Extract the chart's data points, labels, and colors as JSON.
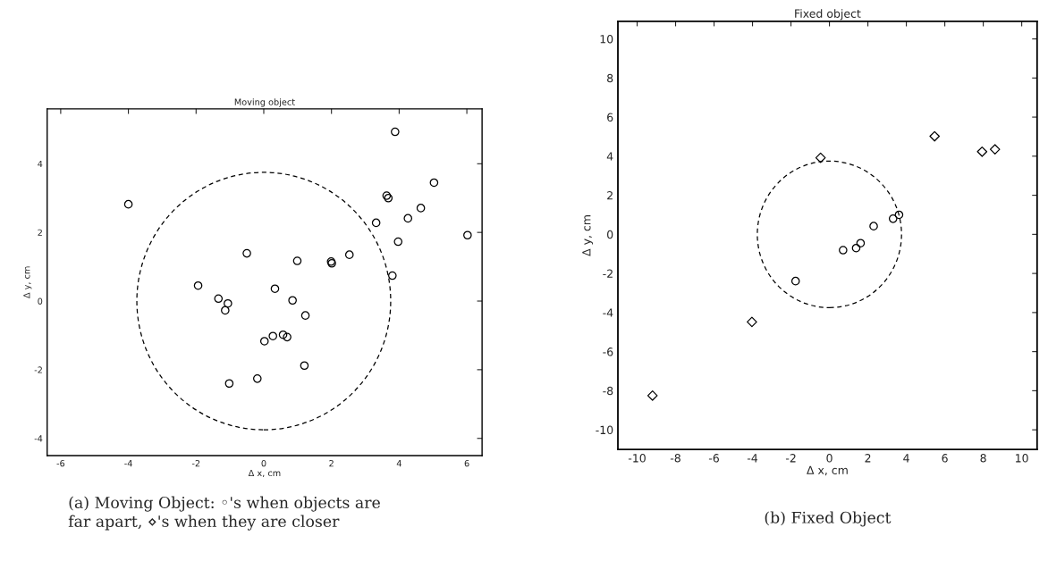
{
  "chart_data": [
    {
      "type": "scatter",
      "title": "Moving object",
      "xlabel": "Δ x, cm",
      "ylabel": "Δ y, cm",
      "xlim": [
        -6.4,
        6.45
      ],
      "ylim": [
        -4.5,
        5.6
      ],
      "xticks": [
        -6,
        -4,
        -2,
        0,
        2,
        4,
        6
      ],
      "yticks": [
        -4,
        -2,
        0,
        2,
        4
      ],
      "grid": false,
      "series": [
        {
          "marker": "circle",
          "color": "#000000",
          "x": [
            -4.0,
            -0.5,
            -1.94,
            -1.34,
            -1.06,
            -1.14,
            0.02,
            0.27,
            -1.02,
            -0.19,
            3.88,
            5.03,
            3.63,
            3.68,
            4.64,
            4.26,
            3.32,
            6.02,
            3.97,
            2.53,
            0.99,
            1.99,
            2.01,
            3.8,
            0.33,
            0.85,
            1.23,
            0.57,
            0.69,
            1.2
          ],
          "values": [
            2.82,
            1.39,
            0.45,
            0.07,
            -0.07,
            -0.27,
            -1.17,
            -1.02,
            -2.4,
            -2.26,
            4.93,
            3.45,
            3.07,
            3.0,
            2.71,
            2.41,
            2.28,
            1.92,
            1.73,
            1.35,
            1.17,
            1.15,
            1.1,
            0.74,
            0.36,
            0.02,
            -0.42,
            -0.98,
            -1.05,
            -1.88
          ]
        }
      ],
      "annotations": [
        "(a) Moving Object: ◦'s when objects are\nfar apart, ⋄'s when they are closer"
      ]
    },
    {
      "type": "scatter",
      "title": "Fixed object",
      "xlabel": "Δ x, cm",
      "ylabel": "Δ y, cm",
      "xlim": [
        -11,
        10.8
      ],
      "ylim": [
        -11,
        10.9
      ],
      "xticks": [
        -10,
        -8,
        -6,
        -4,
        -2,
        0,
        2,
        4,
        6,
        8,
        10
      ],
      "yticks": [
        -10,
        -8,
        -6,
        -4,
        -2,
        0,
        2,
        4,
        6,
        8,
        10
      ],
      "grid": false,
      "series": [
        {
          "marker": "diamond",
          "color": "#000000",
          "x": [
            -9.2,
            -4.03,
            -0.46,
            5.47,
            7.94,
            8.61
          ],
          "values": [
            -8.25,
            -4.48,
            3.92,
            5.02,
            4.23,
            4.35
          ]
        },
        {
          "marker": "circle",
          "color": "#000000",
          "x": [
            -1.76,
            0.71,
            1.39,
            1.62,
            2.3,
            3.31,
            3.62
          ],
          "values": [
            -2.39,
            -0.81,
            -0.7,
            -0.45,
            0.42,
            0.8,
            1.0
          ]
        }
      ],
      "annotations": [
        "(b) Fixed Object"
      ]
    }
  ]
}
